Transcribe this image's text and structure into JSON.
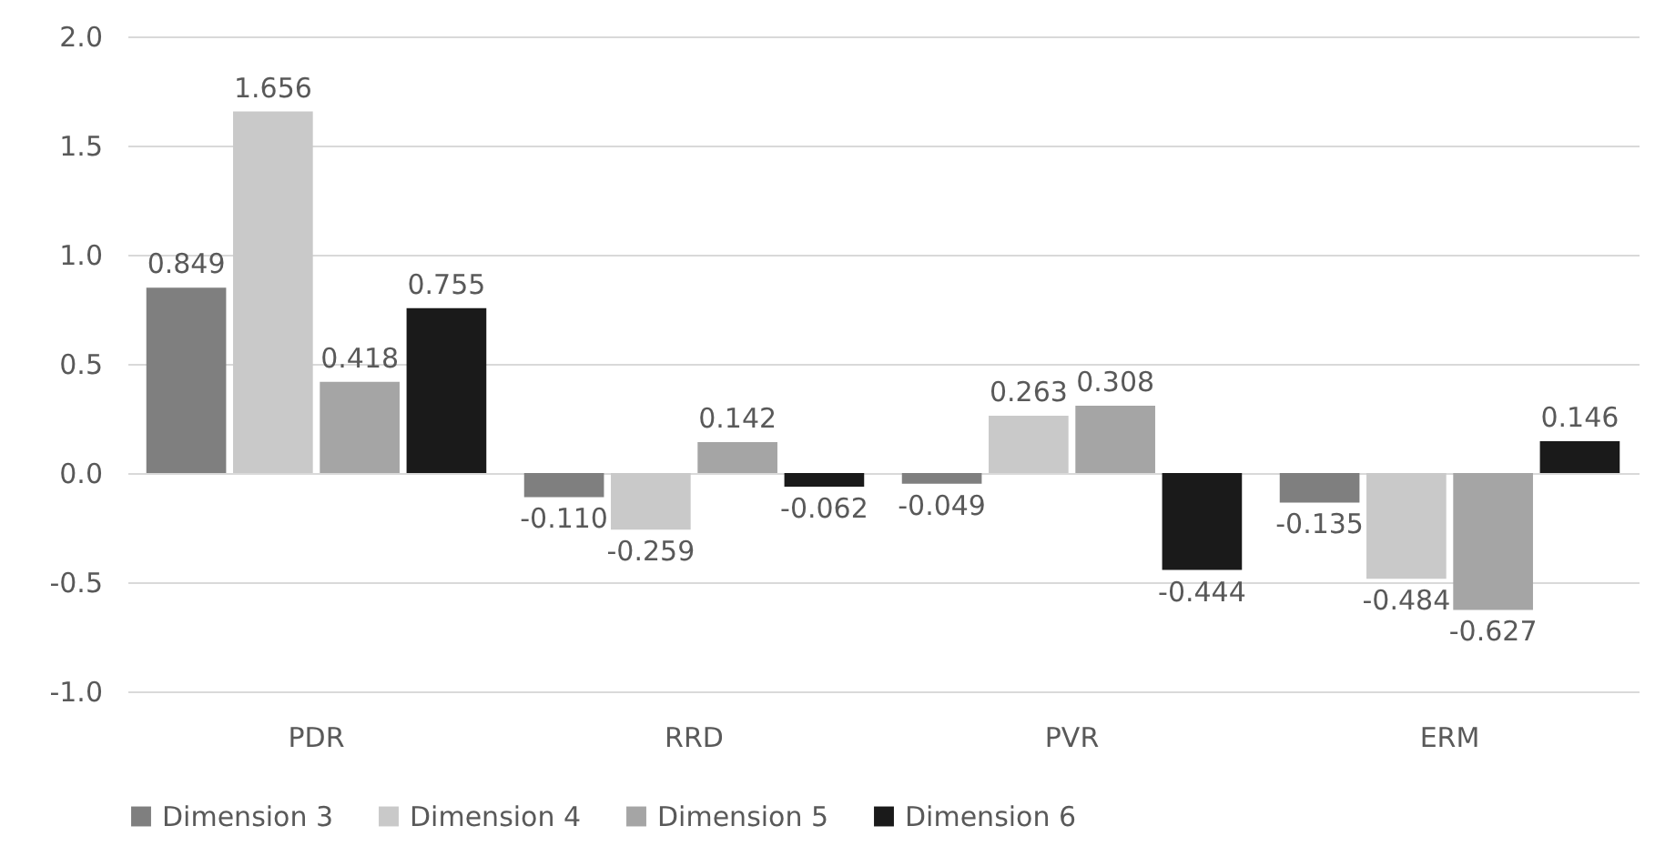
{
  "chart_data": {
    "type": "bar",
    "categories": [
      "PDR",
      "RRD",
      "PVR",
      "ERM"
    ],
    "series": [
      {
        "name": "Dimension 3",
        "color": "#7f7f7f",
        "values": [
          0.849,
          -0.11,
          -0.049,
          -0.135
        ],
        "value_labels": [
          "0.849",
          "-0.110",
          "-0.049",
          "-0.135"
        ]
      },
      {
        "name": "Dimension 4",
        "color": "#c9c9c9",
        "values": [
          1.656,
          -0.259,
          0.263,
          -0.484
        ],
        "value_labels": [
          "1.656",
          "-0.259",
          "0.263",
          "-0.484"
        ]
      },
      {
        "name": "Dimension 5",
        "color": "#a5a5a5",
        "values": [
          0.418,
          0.142,
          0.308,
          -0.627
        ],
        "value_labels": [
          "0.418",
          "0.142",
          "0.308",
          "-0.627"
        ]
      },
      {
        "name": "Dimension 6",
        "color": "#1a1a1a",
        "values": [
          0.755,
          -0.062,
          -0.444,
          0.146
        ],
        "value_labels": [
          "0.755",
          "-0.062",
          "-0.444",
          "0.146"
        ]
      }
    ],
    "ylim": [
      -1.0,
      2.0
    ],
    "yticks": [
      {
        "value": -1,
        "label": "-1.0"
      },
      {
        "value": -0.5,
        "label": "-0.5"
      },
      {
        "value": 0,
        "label": "0.0"
      },
      {
        "value": 0.5,
        "label": "0.5"
      },
      {
        "value": 1,
        "label": "1.0"
      },
      {
        "value": 1.5,
        "label": "1.5"
      },
      {
        "value": 2,
        "label": "2.0"
      }
    ],
    "grid": true,
    "legend": "bottom"
  }
}
